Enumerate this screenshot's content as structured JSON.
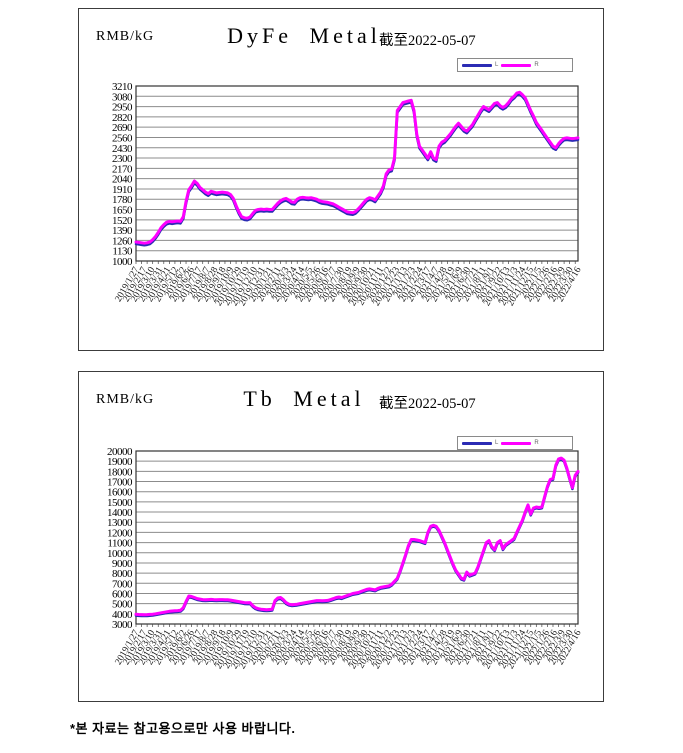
{
  "footer": {
    "note": "*본 자료는 참고용으로만 사용 바랍니다."
  },
  "chart_data": [
    {
      "type": "line",
      "title": "DyFe Metal",
      "unit": "RMB/kG",
      "as_of_label": "截至2022-05-07",
      "ylabel": "RMB/kG",
      "ylim": [
        1000,
        3210
      ],
      "ytick_step": 130,
      "yticks": [
        "3210",
        "3080",
        "2950",
        "2820",
        "2690",
        "2560",
        "2430",
        "2300",
        "2170",
        "2040",
        "1910",
        "1780",
        "1650",
        "1520",
        "1390",
        "1260",
        "1130",
        "1000"
      ],
      "grid": "horizontal",
      "legend_position": "top-right",
      "x_labels": [
        "2019/1/27",
        "2019/2/17",
        "2019/3/10",
        "2019/3/31",
        "2019/4/21",
        "2019/5/12",
        "2019/6/2",
        "2019/6/26",
        "2019/7/17",
        "2019/8/7",
        "2019/8/28",
        "2019/9/18",
        "2019/10/9",
        "2019/10/29",
        "2019/11/19",
        "2019/12/10",
        "2019/12/31",
        "2020/1/21",
        "2020/2/11",
        "2020/3/3",
        "2020/3/24",
        "2020/4/14",
        "2020/5/5",
        "2020/5/26",
        "2020/6/16",
        "2020/7/7",
        "2020/7/30",
        "2020/8/19",
        "2020/9/9",
        "2020/9/30",
        "2020/10/21",
        "2020/11/11",
        "2020/12/2",
        "2020/12/23",
        "2021/1/13",
        "2021/2/3",
        "2021/2/24",
        "2021/3/17",
        "2021/4/7",
        "2021/4/28",
        "2021/5/19",
        "2021/6/9",
        "2021/6/30",
        "2021/7/21",
        "2021/8/11",
        "2021/9/1",
        "2021/9/22",
        "2021/10/13",
        "2021/11/3",
        "2021/11/24",
        "2021/12/15",
        "2022/1/5",
        "2022/1/26",
        "2022/2/16",
        "2022/3/9",
        "2022/3/30",
        "2022/4/16"
      ],
      "series": [
        {
          "name": "L",
          "color": "#2b2bb4",
          "delta_from_R": -25
        },
        {
          "name": "R",
          "color": "#ff00ff",
          "values": [
            1240,
            1235,
            1230,
            1225,
            1230,
            1240,
            1270,
            1310,
            1360,
            1420,
            1460,
            1490,
            1500,
            1495,
            1500,
            1505,
            1500,
            1560,
            1750,
            1900,
            1950,
            2010,
            1980,
            1930,
            1900,
            1870,
            1850,
            1880,
            1870,
            1860,
            1865,
            1870,
            1865,
            1860,
            1840,
            1790,
            1700,
            1620,
            1560,
            1545,
            1540,
            1555,
            1600,
            1640,
            1650,
            1655,
            1650,
            1655,
            1650,
            1650,
            1690,
            1730,
            1760,
            1780,
            1790,
            1770,
            1745,
            1740,
            1780,
            1800,
            1805,
            1800,
            1795,
            1800,
            1790,
            1780,
            1760,
            1750,
            1745,
            1740,
            1730,
            1720,
            1700,
            1680,
            1660,
            1640,
            1620,
            1615,
            1610,
            1625,
            1660,
            1700,
            1740,
            1780,
            1800,
            1790,
            1770,
            1820,
            1870,
            1950,
            2100,
            2150,
            2160,
            2300,
            2900,
            2950,
            3000,
            3010,
            3020,
            3030,
            2900,
            2600,
            2450,
            2400,
            2350,
            2300,
            2380,
            2300,
            2280,
            2450,
            2500,
            2520,
            2560,
            2600,
            2650,
            2700,
            2740,
            2700,
            2660,
            2640,
            2680,
            2720,
            2780,
            2840,
            2900,
            2950,
            2930,
            2910,
            2950,
            2990,
            3000,
            2960,
            2940,
            2960,
            3000,
            3050,
            3080,
            3120,
            3130,
            3100,
            3060,
            2980,
            2900,
            2830,
            2750,
            2700,
            2650,
            2600,
            2550,
            2500,
            2450,
            2430,
            2480,
            2520,
            2550,
            2555,
            2550,
            2545,
            2550,
            2555
          ]
        }
      ]
    },
    {
      "type": "line",
      "title": "Tb Metal",
      "unit": "RMB/kG",
      "as_of_label": "截至2022-05-07",
      "ylabel": "RMB/kG",
      "ylim": [
        3000,
        20000
      ],
      "ytick_step": 1000,
      "yticks": [
        "20000",
        "19000",
        "18000",
        "17000",
        "16000",
        "15000",
        "14000",
        "13000",
        "12000",
        "11000",
        "10000",
        "9000",
        "8000",
        "7000",
        "6000",
        "5000",
        "4000",
        "3000"
      ],
      "grid": "horizontal",
      "legend_position": "top-right",
      "x_labels": [
        "2019/1/27",
        "2019/2/17",
        "2019/3/10",
        "2019/3/31",
        "2019/4/21",
        "2019/5/12",
        "2019/6/2",
        "2019/6/26",
        "2019/7/17",
        "2019/8/7",
        "2019/8/28",
        "2019/9/18",
        "2019/10/9",
        "2019/10/29",
        "2019/11/19",
        "2019/12/10",
        "2019/12/31",
        "2020/1/21",
        "2020/2/11",
        "2020/3/3",
        "2020/3/24",
        "2020/4/14",
        "2020/5/5",
        "2020/5/26",
        "2020/6/16",
        "2020/7/7",
        "2020/7/30",
        "2020/8/19",
        "2020/9/9",
        "2020/9/30",
        "2020/10/21",
        "2020/11/11",
        "2020/12/2",
        "2020/12/23",
        "2021/1/13",
        "2021/2/3",
        "2021/2/24",
        "2021/3/17",
        "2021/4/7",
        "2021/4/28",
        "2021/5/19",
        "2021/6/9",
        "2021/6/30",
        "2021/7/21",
        "2021/8/11",
        "2021/9/1",
        "2021/9/22",
        "2021/10/13",
        "2021/11/3",
        "2021/11/24",
        "2021/12/15",
        "2022/1/5",
        "2022/1/26",
        "2022/2/16",
        "2022/3/9",
        "2022/3/30",
        "2022/4/16"
      ],
      "series": [
        {
          "name": "L",
          "color": "#2b2bb4",
          "delta_from_R": -120
        },
        {
          "name": "R",
          "color": "#ff00ff",
          "values": [
            3950,
            3930,
            3920,
            3910,
            3920,
            3940,
            3960,
            4000,
            4050,
            4100,
            4150,
            4200,
            4250,
            4280,
            4300,
            4320,
            4350,
            4600,
            5200,
            5750,
            5700,
            5600,
            5500,
            5450,
            5400,
            5380,
            5400,
            5420,
            5400,
            5390,
            5400,
            5400,
            5390,
            5380,
            5350,
            5300,
            5250,
            5200,
            5150,
            5100,
            5080,
            5100,
            4800,
            4600,
            4500,
            4450,
            4420,
            4400,
            4420,
            4450,
            5300,
            5550,
            5600,
            5400,
            5100,
            4950,
            4900,
            4920,
            4950,
            5000,
            5050,
            5100,
            5150,
            5200,
            5250,
            5300,
            5300,
            5280,
            5300,
            5320,
            5400,
            5500,
            5600,
            5650,
            5600,
            5700,
            5800,
            5900,
            6000,
            6050,
            6100,
            6200,
            6300,
            6400,
            6450,
            6400,
            6350,
            6500,
            6600,
            6650,
            6700,
            6750,
            6900,
            7200,
            7500,
            8200,
            9000,
            9800,
            10700,
            11300,
            11300,
            11250,
            11200,
            11100,
            11000,
            12000,
            12600,
            12700,
            12600,
            12200,
            11600,
            11000,
            10300,
            9600,
            8900,
            8300,
            7900,
            7500,
            7400,
            8100,
            7800,
            7900,
            8000,
            8600,
            9400,
            10200,
            11000,
            11200,
            10600,
            10300,
            11000,
            11200,
            10400,
            10800,
            11000,
            11200,
            11400,
            12000,
            12600,
            13200,
            14000,
            14700,
            13800,
            14400,
            14500,
            14450,
            14500,
            15500,
            16500,
            17200,
            17300,
            18600,
            19200,
            19300,
            19100,
            18300,
            17300,
            16400,
            17600,
            18000
          ]
        }
      ]
    }
  ]
}
